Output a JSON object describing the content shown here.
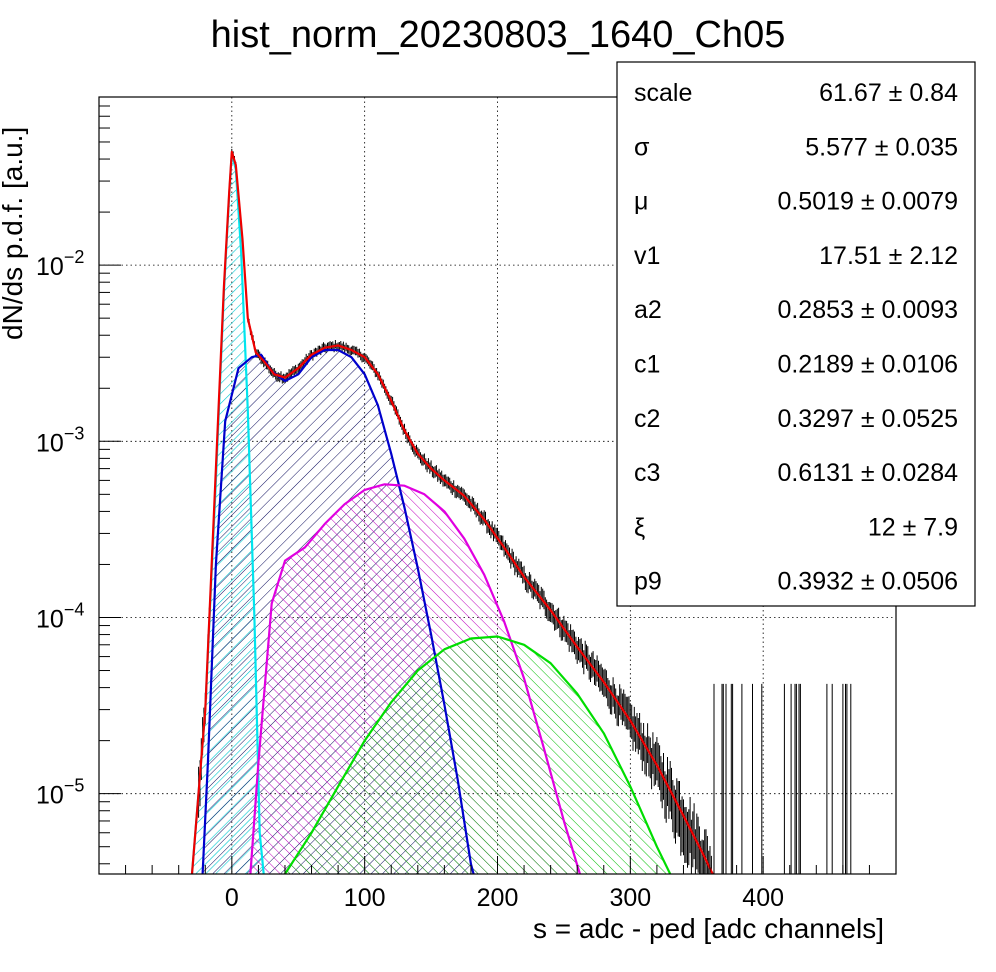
{
  "chart_data": {
    "type": "histogram",
    "title": "hist_norm_20230803_1640_Ch05",
    "xlabel": "s = adc - ped [adc channels]",
    "ylabel": "dN/ds p.d.f. [a.u.]",
    "xlim": [
      -100,
      500
    ],
    "ylim": [
      3.5e-06,
      0.09
    ],
    "yscale": "log",
    "grid": true,
    "x_ticks": [
      0,
      100,
      200,
      300,
      400
    ],
    "y_ticks": [
      {
        "value": 1e-05,
        "base": "10",
        "exp": "−5"
      },
      {
        "value": 0.0001,
        "base": "10",
        "exp": "−4"
      },
      {
        "value": 0.001,
        "base": "10",
        "exp": "−3"
      },
      {
        "value": 0.01,
        "base": "10",
        "exp": "−2"
      }
    ],
    "stats_box": {
      "placement": "top-right",
      "rows": [
        {
          "label": "scale",
          "value": "61.67 ± 0.84"
        },
        {
          "label": "σ",
          "value": "5.577 ± 0.035"
        },
        {
          "label": "μ",
          "value": "0.5019 ± 0.0079"
        },
        {
          "label": "v1",
          "value": "17.51 ± 2.12"
        },
        {
          "label": "a2",
          "value": "0.2853 ± 0.0093"
        },
        {
          "label": "c1",
          "value": "0.2189 ± 0.0106"
        },
        {
          "label": "c2",
          "value": "0.3297 ± 0.0525"
        },
        {
          "label": "c3",
          "value": "0.6131 ± 0.0284"
        },
        {
          "label": "ξ",
          "value": "12 ± 7.9"
        },
        {
          "label": "p9",
          "value": "0.3932 ± 0.0506"
        }
      ]
    },
    "components": [
      {
        "color": "#00e5ee",
        "fill": "#00c8d0",
        "points": [
          [
            -30,
            3.5e-06
          ],
          [
            -20,
            3e-05
          ],
          [
            -12,
            0.0006
          ],
          [
            -6,
            0.007
          ],
          [
            -2,
            0.025
          ],
          [
            0,
            0.043
          ],
          [
            3,
            0.035
          ],
          [
            7,
            0.012
          ],
          [
            12,
            0.0015
          ],
          [
            17,
            0.0001
          ],
          [
            21,
            6e-06
          ],
          [
            24,
            3.5e-06
          ]
        ]
      },
      {
        "color": "#0000cc",
        "fill": "#000050",
        "points": [
          [
            -22,
            3.5e-06
          ],
          [
            -18,
            1.5e-05
          ],
          [
            -12,
            0.0002
          ],
          [
            -5,
            0.0013
          ],
          [
            5,
            0.0026
          ],
          [
            15,
            0.003
          ],
          [
            22,
            0.0031
          ],
          [
            30,
            0.0025
          ],
          [
            40,
            0.0022
          ],
          [
            50,
            0.0024
          ],
          [
            60,
            0.003
          ],
          [
            70,
            0.0033
          ],
          [
            80,
            0.0033
          ],
          [
            90,
            0.003
          ],
          [
            100,
            0.0024
          ],
          [
            110,
            0.0016
          ],
          [
            120,
            0.00085
          ],
          [
            130,
            0.00042
          ],
          [
            140,
            0.00019
          ],
          [
            150,
            8e-05
          ],
          [
            160,
            3.2e-05
          ],
          [
            170,
            1.2e-05
          ],
          [
            180,
            4e-06
          ],
          [
            182,
            3.5e-06
          ]
        ]
      },
      {
        "color": "#e000e0",
        "fill": "#c000c0",
        "points": [
          [
            14,
            3.5e-06
          ],
          [
            20,
            1.5e-05
          ],
          [
            30,
            0.00012
          ],
          [
            40,
            0.00021
          ],
          [
            55,
            0.00025
          ],
          [
            70,
            0.00034
          ],
          [
            85,
            0.00044
          ],
          [
            100,
            0.00053
          ],
          [
            115,
            0.00057
          ],
          [
            130,
            0.00056
          ],
          [
            145,
            0.0005
          ],
          [
            160,
            0.0004
          ],
          [
            175,
            0.00028
          ],
          [
            190,
            0.000175
          ],
          [
            205,
            9.5e-05
          ],
          [
            220,
            4.5e-05
          ],
          [
            235,
            1.8e-05
          ],
          [
            250,
            7e-06
          ],
          [
            262,
            3.5e-06
          ]
        ]
      },
      {
        "color": "#00dd00",
        "fill": "#00c000",
        "points": [
          [
            40,
            3.5e-06
          ],
          [
            60,
            6e-06
          ],
          [
            80,
            1.1e-05
          ],
          [
            100,
            2e-05
          ],
          [
            120,
            3.3e-05
          ],
          [
            140,
            5e-05
          ],
          [
            160,
            6.6e-05
          ],
          [
            180,
            7.6e-05
          ],
          [
            200,
            7.8e-05
          ],
          [
            220,
            7e-05
          ],
          [
            240,
            5.5e-05
          ],
          [
            260,
            3.7e-05
          ],
          [
            280,
            2.2e-05
          ],
          [
            300,
            1.1e-05
          ],
          [
            320,
            5e-06
          ],
          [
            330,
            3.5e-06
          ]
        ]
      },
      {
        "color": "#ee0000",
        "fill": null,
        "points": [
          [
            -30,
            3.5e-06
          ],
          [
            -20,
            3e-05
          ],
          [
            -12,
            0.0007
          ],
          [
            -6,
            0.0075
          ],
          [
            -2,
            0.026
          ],
          [
            0,
            0.044
          ],
          [
            3,
            0.037
          ],
          [
            8,
            0.014
          ],
          [
            12,
            0.005
          ],
          [
            18,
            0.0032
          ],
          [
            25,
            0.0028
          ],
          [
            32,
            0.0024
          ],
          [
            40,
            0.0023
          ],
          [
            50,
            0.0026
          ],
          [
            60,
            0.0031
          ],
          [
            70,
            0.0034
          ],
          [
            80,
            0.0035
          ],
          [
            90,
            0.0033
          ],
          [
            100,
            0.003
          ],
          [
            110,
            0.0024
          ],
          [
            120,
            0.0017
          ],
          [
            130,
            0.00115
          ],
          [
            140,
            0.00085
          ],
          [
            150,
            0.0007
          ],
          [
            160,
            0.0006
          ],
          [
            175,
            0.00049
          ],
          [
            190,
            0.00036
          ],
          [
            205,
            0.00025
          ],
          [
            220,
            0.00017
          ],
          [
            240,
            0.00011
          ],
          [
            260,
            6.8e-05
          ],
          [
            280,
            4.3e-05
          ],
          [
            300,
            2.6e-05
          ],
          [
            320,
            1.45e-05
          ],
          [
            340,
            7.5e-06
          ],
          [
            355,
            4.5e-06
          ],
          [
            362,
            3.5e-06
          ]
        ]
      }
    ]
  }
}
